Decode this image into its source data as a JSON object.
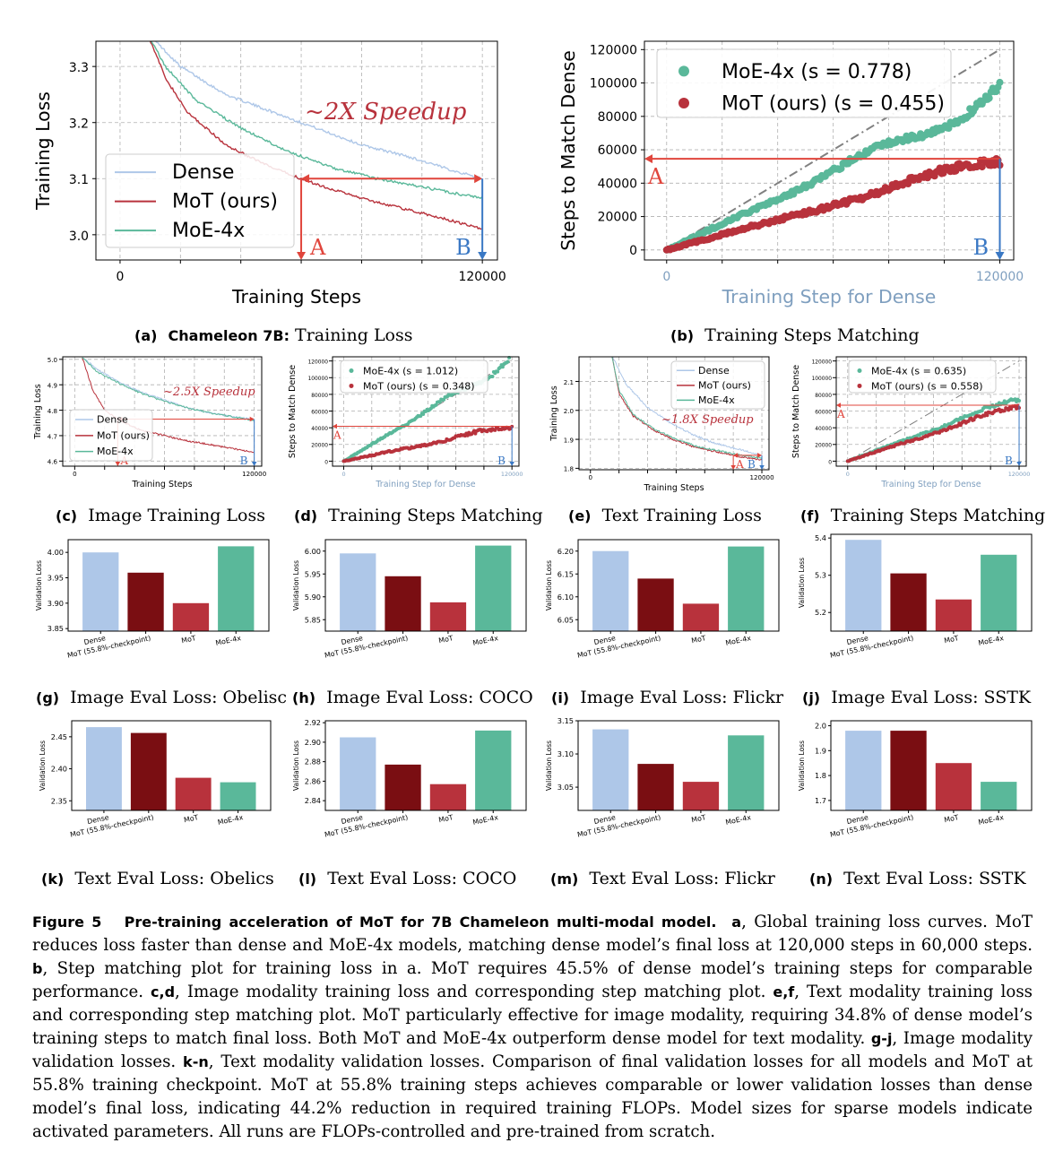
{
  "colors": {
    "dense": "#aec7e8",
    "mot": "#b8323c",
    "mot_ckpt": "#7a0e12",
    "moe": "#5ab89a",
    "arrow": "#e0453c",
    "blue": "#3a78c4"
  },
  "panels": [
    {
      "id": "a",
      "caption": {
        "letter": "(a)",
        "bold": "Chameleon 7B:",
        "text": "Training Loss"
      },
      "chart_data": {
        "type": "line",
        "xlabel": "Training Steps",
        "ylabel": "Training Loss",
        "x_ticks": [
          "0",
          "120000"
        ],
        "y_ticks": [
          "3.0",
          "3.1",
          "3.2",
          "3.3"
        ],
        "xlim": [
          -8000,
          125000
        ],
        "ylim": [
          2.955,
          3.345
        ],
        "legend": "bottom-left",
        "series": [
          {
            "name": "Dense",
            "x": [
              9000,
              20000,
              35000,
              50000,
              65000,
              80000,
              95000,
              110000,
              120000
            ],
            "y": [
              3.36,
              3.3,
              3.25,
              3.22,
              3.19,
              3.16,
              3.14,
              3.115,
              3.1
            ]
          },
          {
            "name": "MoT (ours)",
            "x": [
              9000,
              15000,
              22000,
              35000,
              50000,
              65000,
              80000,
              95000,
              110000,
              120000
            ],
            "y": [
              3.36,
              3.28,
              3.22,
              3.16,
              3.12,
              3.09,
              3.065,
              3.045,
              3.025,
              3.01
            ]
          },
          {
            "name": "MoE-4x",
            "x": [
              9000,
              15000,
              25000,
              40000,
              55000,
              70000,
              85000,
              100000,
              120000
            ],
            "y": [
              3.36,
              3.3,
              3.24,
              3.19,
              3.15,
              3.12,
              3.1,
              3.085,
              3.065
            ]
          }
        ],
        "annotation": "~2X Speedup",
        "marker_a": "A",
        "marker_b": "B"
      }
    },
    {
      "id": "b",
      "caption": {
        "letter": "(b)",
        "bold": "",
        "text": "Training Steps Matching"
      },
      "chart_data": {
        "type": "scatter",
        "xlabel": "Training Step for Dense",
        "ylabel": "Steps to Match Dense",
        "x_ticks": [
          "0",
          "120000"
        ],
        "y_ticks": [
          "0",
          "20000",
          "40000",
          "60000",
          "80000",
          "100000",
          "120000"
        ],
        "xlim": [
          -8000,
          125000
        ],
        "ylim": [
          -6000,
          125000
        ],
        "legend": "top-left",
        "series": [
          {
            "name": "MoE-4x (s = 0.778)",
            "slope": 0.778,
            "x_end": 120000
          },
          {
            "name": "MoT (ours) (s = 0.455)",
            "slope": 0.455,
            "x_end": 120000
          }
        ],
        "marker_a": "A",
        "marker_b": "B"
      }
    },
    {
      "id": "c",
      "caption": {
        "letter": "(c)",
        "bold": "",
        "text": "Image Training Loss"
      },
      "chart_data": {
        "type": "line",
        "xlabel": "Training Steps",
        "ylabel": "Training Loss",
        "x_ticks": [
          "0",
          "120000"
        ],
        "y_ticks": [
          "4.6",
          "4.7",
          "4.8",
          "4.9",
          "5.0"
        ],
        "xlim": [
          -8000,
          125000
        ],
        "ylim": [
          4.58,
          5.01
        ],
        "legend": "bottom-left",
        "series": [
          {
            "name": "Dense",
            "x": [
              5000,
              15000,
              30000,
              45000,
              60000,
              75000,
              90000,
              105000,
              120000
            ],
            "y": [
              5.01,
              4.96,
              4.91,
              4.87,
              4.84,
              4.81,
              4.79,
              4.775,
              4.765
            ]
          },
          {
            "name": "MoT (ours)",
            "x": [
              5000,
              12000,
              20000,
              30000,
              45000,
              60000,
              75000,
              90000,
              105000,
              120000
            ],
            "y": [
              5.01,
              4.88,
              4.8,
              4.76,
              4.72,
              4.7,
              4.68,
              4.665,
              4.65,
              4.635
            ]
          },
          {
            "name": "MoE-4x",
            "x": [
              5000,
              15000,
              30000,
              45000,
              60000,
              75000,
              90000,
              105000,
              120000
            ],
            "y": [
              5.01,
              4.95,
              4.905,
              4.865,
              4.835,
              4.81,
              4.79,
              4.775,
              4.76
            ]
          }
        ],
        "annotation": "~2.5X Speedup",
        "marker_a": "A",
        "marker_b": "B"
      }
    },
    {
      "id": "d",
      "caption": {
        "letter": "(d)",
        "bold": "",
        "text": "Training Steps Matching"
      },
      "chart_data": {
        "type": "scatter",
        "xlabel": "Training Step for Dense",
        "ylabel": "Steps to Match Dense",
        "x_ticks": [
          "0",
          "120000"
        ],
        "y_ticks": [
          "0",
          "20000",
          "40000",
          "60000",
          "80000",
          "100000",
          "120000"
        ],
        "xlim": [
          -8000,
          125000
        ],
        "ylim": [
          -6000,
          125000
        ],
        "legend": "top-right",
        "series": [
          {
            "name": "MoE-4x (s = 1.012)",
            "slope": 1.012,
            "x_end": 118000
          },
          {
            "name": "MoT (ours) (s = 0.348)",
            "slope": 0.348,
            "x_end": 120000
          }
        ],
        "marker_a": "A",
        "marker_b": "B"
      }
    },
    {
      "id": "e",
      "caption": {
        "letter": "(e)",
        "bold": "",
        "text": "Text Training Loss"
      },
      "chart_data": {
        "type": "line",
        "xlabel": "Training Steps",
        "ylabel": "Training Loss",
        "x_ticks": [
          "0",
          "120000"
        ],
        "y_ticks": [
          "1.8",
          "1.9",
          "2.0",
          "2.1"
        ],
        "xlim": [
          -8000,
          125000
        ],
        "ylim": [
          1.795,
          2.185
        ],
        "legend": "top-right",
        "series": [
          {
            "name": "Dense",
            "x": [
              15000,
              25000,
              40000,
              55000,
              70000,
              85000,
              100000,
              120000
            ],
            "y": [
              2.19,
              2.09,
              2.01,
              1.96,
              1.92,
              1.89,
              1.87,
              1.845
            ]
          },
          {
            "name": "MoT (ours)",
            "x": [
              15000,
              20000,
              30000,
              45000,
              60000,
              75000,
              90000,
              105000,
              120000
            ],
            "y": [
              2.19,
              2.06,
              1.98,
              1.93,
              1.895,
              1.87,
              1.855,
              1.84,
              1.83
            ]
          },
          {
            "name": "MoE-4x",
            "x": [
              15000,
              20000,
              30000,
              45000,
              60000,
              75000,
              90000,
              105000,
              120000
            ],
            "y": [
              2.19,
              2.07,
              1.985,
              1.935,
              1.9,
              1.875,
              1.86,
              1.845,
              1.835
            ]
          }
        ],
        "annotation": "~1.8X Speedup",
        "marker_a": "A",
        "marker_b": "B"
      }
    },
    {
      "id": "f",
      "caption": {
        "letter": "(f)",
        "bold": "",
        "text": "Training Steps Matching"
      },
      "chart_data": {
        "type": "scatter",
        "xlabel": "Training Step for Dense",
        "ylabel": "Steps to Match Dense",
        "x_ticks": [
          "0",
          "120000"
        ],
        "y_ticks": [
          "0",
          "20000",
          "40000",
          "60000",
          "80000",
          "100000",
          "120000"
        ],
        "xlim": [
          -8000,
          125000
        ],
        "ylim": [
          -6000,
          125000
        ],
        "legend": "top-left",
        "series": [
          {
            "name": "MoE-4x (s = 0.635)",
            "slope": 0.635,
            "x_end": 120000
          },
          {
            "name": "MoT (ours) (s = 0.558)",
            "slope": 0.558,
            "x_end": 120000
          }
        ],
        "marker_a": "A",
        "marker_b": "B"
      }
    },
    {
      "id": "g",
      "caption": {
        "letter": "(g)",
        "bold": "",
        "text": "Image Eval Loss: Obelisc"
      },
      "chart_data": {
        "type": "bar",
        "ylabel": "Validation Loss",
        "categories": [
          "Dense",
          "MoT (55.8%-checkpoint)",
          "MoT",
          "MoE-4x"
        ],
        "values": [
          4.0,
          3.96,
          3.9,
          4.012
        ],
        "ylim": [
          3.845,
          4.025
        ],
        "y_ticks": [
          "3.85",
          "3.90",
          "3.95",
          "4.00"
        ]
      }
    },
    {
      "id": "h",
      "caption": {
        "letter": "(h)",
        "bold": "",
        "text": "Image Eval Loss: COCO"
      },
      "chart_data": {
        "type": "bar",
        "ylabel": "Validation Loss",
        "categories": [
          "Dense",
          "MoT (55.8%-checkpoint)",
          "MoT",
          "MoE-4x"
        ],
        "values": [
          5.995,
          5.945,
          5.888,
          6.012
        ],
        "ylim": [
          5.825,
          6.025
        ],
        "y_ticks": [
          "5.85",
          "5.90",
          "5.95",
          "6.00"
        ]
      }
    },
    {
      "id": "i",
      "caption": {
        "letter": "(i)",
        "bold": "",
        "text": "Image Eval Loss: Flickr"
      },
      "chart_data": {
        "type": "bar",
        "ylabel": "Validation Loss",
        "categories": [
          "Dense",
          "MoT (55.8%-checkpoint)",
          "MoT",
          "MoE-4x"
        ],
        "values": [
          6.2,
          6.14,
          6.085,
          6.21
        ],
        "ylim": [
          6.025,
          6.225
        ],
        "y_ticks": [
          "6.05",
          "6.10",
          "6.15",
          "6.20"
        ]
      }
    },
    {
      "id": "j",
      "caption": {
        "letter": "(j)",
        "bold": "",
        "text": "Image Eval Loss: SSTK"
      },
      "chart_data": {
        "type": "bar",
        "ylabel": "Validation Loss",
        "categories": [
          "Dense",
          "MoT (55.8%-checkpoint)",
          "MoT",
          "MoE-4x"
        ],
        "values": [
          5.395,
          5.305,
          5.235,
          5.355
        ],
        "ylim": [
          5.15,
          5.41
        ],
        "y_ticks": [
          "5.2",
          "5.3",
          "5.4"
        ]
      }
    },
    {
      "id": "k",
      "caption": {
        "letter": "(k)",
        "bold": "",
        "text": "Text Eval Loss: Obelics"
      },
      "chart_data": {
        "type": "bar",
        "ylabel": "Validation Loss",
        "categories": [
          "Dense",
          "MoT (55.8%-checkpoint)",
          "MoT",
          "MoE-4x"
        ],
        "values": [
          2.465,
          2.456,
          2.386,
          2.379
        ],
        "ylim": [
          2.335,
          2.475
        ],
        "y_ticks": [
          "2.35",
          "2.40",
          "2.45"
        ]
      }
    },
    {
      "id": "l",
      "caption": {
        "letter": "(l)",
        "bold": "",
        "text": "Text Eval Loss: COCO"
      },
      "chart_data": {
        "type": "bar",
        "ylabel": "Validation Loss",
        "categories": [
          "Dense",
          "MoT (55.8%-checkpoint)",
          "MoT",
          "MoE-4x"
        ],
        "values": [
          2.905,
          2.877,
          2.857,
          2.912
        ],
        "ylim": [
          2.83,
          2.922
        ],
        "y_ticks": [
          "2.84",
          "2.86",
          "2.88",
          "2.90",
          "2.92"
        ]
      }
    },
    {
      "id": "m",
      "caption": {
        "letter": "(m)",
        "bold": "",
        "text": "Text Eval Loss: Flickr"
      },
      "chart_data": {
        "type": "bar",
        "ylabel": "Validation Loss",
        "categories": [
          "Dense",
          "MoT (55.8%-checkpoint)",
          "MoT",
          "MoE-4x"
        ],
        "values": [
          3.137,
          3.085,
          3.058,
          3.128
        ],
        "ylim": [
          3.015,
          3.15
        ],
        "y_ticks": [
          "3.05",
          "3.10",
          "3.15"
        ]
      }
    },
    {
      "id": "n",
      "caption": {
        "letter": "(n)",
        "bold": "",
        "text": "Text Eval Loss: SSTK"
      },
      "chart_data": {
        "type": "bar",
        "ylabel": "Validation Loss",
        "categories": [
          "Dense",
          "MoT (55.8%-checkpoint)",
          "MoT",
          "MoE-4x"
        ],
        "values": [
          1.98,
          1.98,
          1.85,
          1.775
        ],
        "ylim": [
          1.66,
          2.02
        ],
        "y_ticks": [
          "1.7",
          "1.8",
          "1.9",
          "2.0"
        ]
      }
    }
  ],
  "figure_caption": {
    "label": "Figure 5",
    "title": "Pre-training acceleration of MoT for 7B Chameleon multi-modal model.",
    "parts": [
      {
        "b": "a",
        "t": ", Global training loss curves. MoT reduces loss faster than dense and MoE-4x models, matching dense model’s final loss at 120,000 steps in 60,000 steps. "
      },
      {
        "b": "b",
        "t": ", Step matching plot for training loss in a. MoT requires 45.5% of dense model’s training steps for comparable performance. "
      },
      {
        "b": "c,d",
        "t": ", Image modality training loss and corresponding step matching plot. "
      },
      {
        "b": "e,f",
        "t": ", Text modality training loss and corresponding step matching plot. MoT particularly effective for image modality, requiring 34.8% of dense model’s training steps to match final loss. Both MoT and MoE-4x outperform dense model for text modality. "
      },
      {
        "b": "g-j",
        "t": ", Image modality validation losses. "
      },
      {
        "b": "k-n",
        "t": ", Text modality validation losses. Comparison of final validation losses for all models and MoT at 55.8% training checkpoint. MoT at 55.8% training steps achieves comparable or lower validation losses than dense model’s final loss, indicating 44.2% reduction in required training FLOPs. Model sizes for sparse models indicate activated parameters. All runs are FLOPs-controlled and pre-trained from scratch."
      }
    ]
  }
}
